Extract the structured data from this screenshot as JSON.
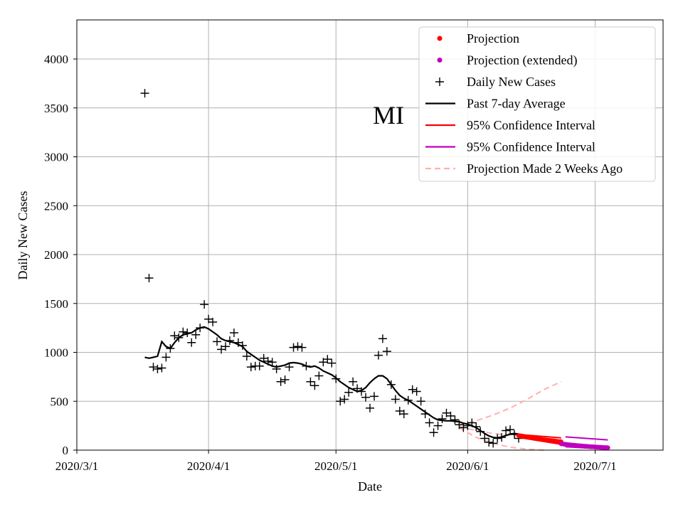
{
  "chart_data": {
    "type": "scatter",
    "title": "MI",
    "xlabel": "Date",
    "ylabel": "Daily New Cases",
    "xlim_days": [
      0,
      138
    ],
    "ylim": [
      0,
      4400
    ],
    "grid": true,
    "legend_position": "top-right",
    "x_ticks": [
      {
        "day": 0,
        "label": "2020/3/1"
      },
      {
        "day": 31,
        "label": "2020/4/1"
      },
      {
        "day": 61,
        "label": "2020/5/1"
      },
      {
        "day": 92,
        "label": "2020/6/1"
      },
      {
        "day": 122,
        "label": "2020/7/1"
      }
    ],
    "y_ticks": [
      0,
      500,
      1000,
      1500,
      2000,
      2500,
      3000,
      3500,
      4000
    ],
    "legend": [
      {
        "label": "Projection",
        "style": "red-dot"
      },
      {
        "label": "Projection (extended)",
        "style": "magenta-dot"
      },
      {
        "label": "Daily New Cases",
        "style": "black-plus"
      },
      {
        "label": "Past 7-day Average",
        "style": "black-line"
      },
      {
        "label": "95% Confidence Interval",
        "style": "red-line"
      },
      {
        "label": "95% Confidence Interval",
        "style": "magenta-line"
      },
      {
        "label": "Projection Made 2 Weeks Ago",
        "style": "pink-dashed"
      }
    ],
    "colors": {
      "projection": "#ff0000",
      "projection_extended": "#bf00bf",
      "daily": "#000000",
      "average": "#000000",
      "two_weeks_ago": "#ffb0b0",
      "grid": "#b0b0b0"
    },
    "daily_new_cases": [
      [
        16,
        3650
      ],
      [
        17,
        1760
      ],
      [
        18,
        850
      ],
      [
        19,
        830
      ],
      [
        20,
        840
      ],
      [
        21,
        950
      ],
      [
        22,
        1040
      ],
      [
        23,
        1170
      ],
      [
        24,
        1150
      ],
      [
        25,
        1210
      ],
      [
        26,
        1200
      ],
      [
        27,
        1100
      ],
      [
        28,
        1180
      ],
      [
        29,
        1250
      ],
      [
        30,
        1490
      ],
      [
        31,
        1340
      ],
      [
        32,
        1310
      ],
      [
        33,
        1110
      ],
      [
        34,
        1030
      ],
      [
        35,
        1060
      ],
      [
        36,
        1120
      ],
      [
        37,
        1200
      ],
      [
        38,
        1100
      ],
      [
        39,
        1070
      ],
      [
        40,
        960
      ],
      [
        41,
        850
      ],
      [
        42,
        860
      ],
      [
        43,
        860
      ],
      [
        44,
        940
      ],
      [
        45,
        910
      ],
      [
        46,
        900
      ],
      [
        47,
        830
      ],
      [
        48,
        700
      ],
      [
        49,
        720
      ],
      [
        50,
        850
      ],
      [
        51,
        1050
      ],
      [
        52,
        1060
      ],
      [
        53,
        1050
      ],
      [
        54,
        860
      ],
      [
        55,
        700
      ],
      [
        56,
        660
      ],
      [
        57,
        760
      ],
      [
        58,
        900
      ],
      [
        59,
        930
      ],
      [
        60,
        890
      ],
      [
        61,
        730
      ],
      [
        62,
        500
      ],
      [
        63,
        520
      ],
      [
        64,
        590
      ],
      [
        65,
        700
      ],
      [
        66,
        630
      ],
      [
        67,
        600
      ],
      [
        68,
        540
      ],
      [
        69,
        430
      ],
      [
        70,
        550
      ],
      [
        71,
        970
      ],
      [
        72,
        1140
      ],
      [
        73,
        1010
      ],
      [
        74,
        670
      ],
      [
        75,
        520
      ],
      [
        76,
        400
      ],
      [
        77,
        370
      ],
      [
        78,
        510
      ],
      [
        79,
        620
      ],
      [
        80,
        600
      ],
      [
        81,
        500
      ],
      [
        82,
        370
      ],
      [
        83,
        280
      ],
      [
        84,
        180
      ],
      [
        85,
        250
      ],
      [
        86,
        320
      ],
      [
        87,
        380
      ],
      [
        88,
        350
      ],
      [
        89,
        310
      ],
      [
        90,
        260
      ],
      [
        91,
        230
      ],
      [
        92,
        250
      ],
      [
        93,
        280
      ],
      [
        94,
        240
      ],
      [
        95,
        190
      ],
      [
        96,
        120
      ],
      [
        97,
        80
      ],
      [
        98,
        70
      ],
      [
        99,
        120
      ],
      [
        100,
        130
      ],
      [
        101,
        200
      ],
      [
        102,
        210
      ],
      [
        103,
        160
      ],
      [
        104,
        120
      ]
    ],
    "past_7day_average": [
      [
        16,
        950
      ],
      [
        17,
        940
      ],
      [
        18,
        950
      ],
      [
        19,
        960
      ],
      [
        20,
        1110
      ],
      [
        21,
        1060
      ],
      [
        22,
        1040
      ],
      [
        23,
        1100
      ],
      [
        24,
        1150
      ],
      [
        25,
        1180
      ],
      [
        26,
        1190
      ],
      [
        27,
        1200
      ],
      [
        28,
        1230
      ],
      [
        29,
        1250
      ],
      [
        30,
        1260
      ],
      [
        31,
        1240
      ],
      [
        32,
        1210
      ],
      [
        33,
        1180
      ],
      [
        34,
        1140
      ],
      [
        35,
        1120
      ],
      [
        36,
        1110
      ],
      [
        37,
        1100
      ],
      [
        38,
        1080
      ],
      [
        39,
        1060
      ],
      [
        40,
        1010
      ],
      [
        41,
        980
      ],
      [
        42,
        950
      ],
      [
        43,
        920
      ],
      [
        44,
        900
      ],
      [
        45,
        880
      ],
      [
        46,
        860
      ],
      [
        47,
        850
      ],
      [
        48,
        860
      ],
      [
        49,
        870
      ],
      [
        50,
        890
      ],
      [
        51,
        895
      ],
      [
        52,
        890
      ],
      [
        53,
        880
      ],
      [
        54,
        860
      ],
      [
        55,
        850
      ],
      [
        56,
        860
      ],
      [
        57,
        840
      ],
      [
        58,
        810
      ],
      [
        59,
        790
      ],
      [
        60,
        770
      ],
      [
        61,
        740
      ],
      [
        62,
        700
      ],
      [
        63,
        670
      ],
      [
        64,
        640
      ],
      [
        65,
        620
      ],
      [
        66,
        600
      ],
      [
        67,
        610
      ],
      [
        68,
        640
      ],
      [
        69,
        690
      ],
      [
        70,
        730
      ],
      [
        71,
        760
      ],
      [
        72,
        760
      ],
      [
        73,
        730
      ],
      [
        74,
        670
      ],
      [
        75,
        610
      ],
      [
        76,
        560
      ],
      [
        77,
        530
      ],
      [
        78,
        510
      ],
      [
        79,
        480
      ],
      [
        80,
        450
      ],
      [
        81,
        420
      ],
      [
        82,
        390
      ],
      [
        83,
        360
      ],
      [
        84,
        330
      ],
      [
        85,
        310
      ],
      [
        86,
        305
      ],
      [
        87,
        300
      ],
      [
        88,
        300
      ],
      [
        89,
        295
      ],
      [
        90,
        290
      ],
      [
        91,
        275
      ],
      [
        92,
        265
      ],
      [
        93,
        250
      ],
      [
        94,
        230
      ],
      [
        95,
        200
      ],
      [
        96,
        170
      ],
      [
        97,
        145
      ],
      [
        98,
        130
      ],
      [
        99,
        125
      ],
      [
        100,
        135
      ],
      [
        101,
        150
      ],
      [
        102,
        165
      ],
      [
        103,
        170
      ],
      [
        104,
        165
      ]
    ],
    "projection": {
      "start_day": 104,
      "end_day": 114,
      "start_value": 150,
      "end_value": 85
    },
    "projection_ci": {
      "lower": [
        [
          104,
          130
        ],
        [
          114,
          60
        ]
      ],
      "upper": [
        [
          104,
          160
        ],
        [
          114,
          125
        ]
      ]
    },
    "projection_extended": {
      "start_day": 114,
      "end_day": 125,
      "start_value": 65,
      "end_value": 25
    },
    "projection_extended_ci": {
      "lower": [
        [
          115,
          35
        ],
        [
          125,
          10
        ]
      ],
      "upper": [
        [
          115,
          135
        ],
        [
          125,
          105
        ]
      ]
    },
    "projection_2_weeks_ago": {
      "upper": [
        [
          90,
          250
        ],
        [
          94,
          300
        ],
        [
          98,
          360
        ],
        [
          102,
          430
        ],
        [
          106,
          520
        ],
        [
          110,
          620
        ],
        [
          114,
          700
        ]
      ],
      "center": [
        [
          90,
          240
        ],
        [
          94,
          200
        ],
        [
          98,
          170
        ],
        [
          102,
          150
        ],
        [
          106,
          135
        ],
        [
          110,
          120
        ],
        [
          114,
          110
        ]
      ],
      "lower": [
        [
          90,
          230
        ],
        [
          94,
          130
        ],
        [
          98,
          70
        ],
        [
          102,
          30
        ],
        [
          106,
          10
        ],
        [
          110,
          0
        ]
      ]
    }
  }
}
